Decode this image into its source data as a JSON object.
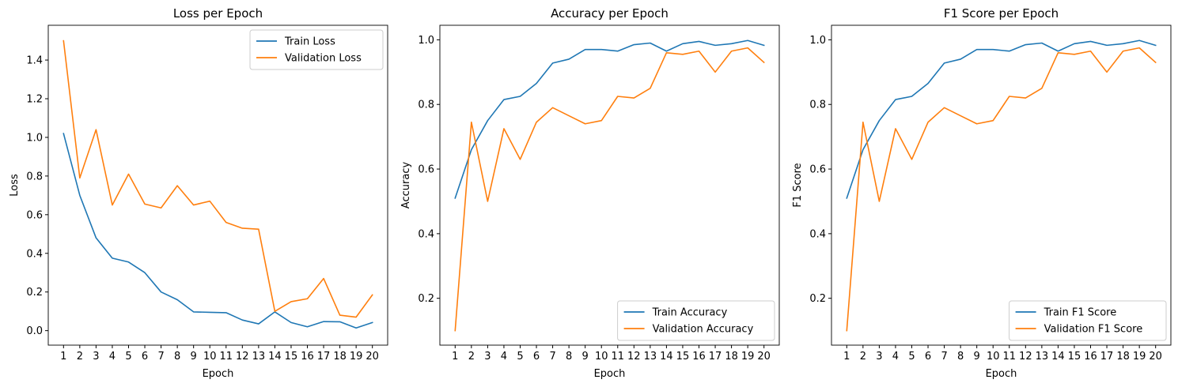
{
  "colors": {
    "train": "#1f77b4",
    "validation": "#ff7f0e",
    "axes": "#000000"
  },
  "chart_data": [
    {
      "type": "line",
      "title": "Loss per Epoch",
      "xlabel": "Epoch",
      "ylabel": "Loss",
      "x": [
        1,
        2,
        3,
        4,
        5,
        6,
        7,
        8,
        9,
        10,
        11,
        12,
        13,
        14,
        15,
        16,
        17,
        18,
        19,
        20
      ],
      "ylim": [
        -0.075,
        1.58
      ],
      "yticks": [
        0.0,
        0.2,
        0.4,
        0.6,
        0.8,
        1.0,
        1.2,
        1.4
      ],
      "ytick_labels": [
        "0.0",
        "0.2",
        "0.4",
        "0.6",
        "0.8",
        "1.0",
        "1.2",
        "1.4"
      ],
      "legend_position": "top-right",
      "series": [
        {
          "name": "Train Loss",
          "color": "#1f77b4",
          "values": [
            1.02,
            0.7,
            0.48,
            0.375,
            0.355,
            0.3,
            0.2,
            0.16,
            0.097,
            0.095,
            0.093,
            0.055,
            0.035,
            0.097,
            0.042,
            0.02,
            0.047,
            0.046,
            0.014,
            0.042
          ]
        },
        {
          "name": "Validation Loss",
          "color": "#ff7f0e",
          "values": [
            1.5,
            0.79,
            1.04,
            0.65,
            0.81,
            0.655,
            0.635,
            0.75,
            0.65,
            0.67,
            0.56,
            0.53,
            0.525,
            0.1,
            0.15,
            0.165,
            0.27,
            0.08,
            0.07,
            0.185
          ]
        }
      ]
    },
    {
      "type": "line",
      "title": "Accuracy per Epoch",
      "xlabel": "Epoch",
      "ylabel": "Accuracy",
      "x": [
        1,
        2,
        3,
        4,
        5,
        6,
        7,
        8,
        9,
        10,
        11,
        12,
        13,
        14,
        15,
        16,
        17,
        18,
        19,
        20
      ],
      "ylim": [
        0.055,
        1.045
      ],
      "yticks": [
        0.2,
        0.4,
        0.6,
        0.8,
        1.0
      ],
      "ytick_labels": [
        "0.2",
        "0.4",
        "0.6",
        "0.8",
        "1.0"
      ],
      "legend_position": "bottom-right",
      "series": [
        {
          "name": "Train Accuracy",
          "color": "#1f77b4",
          "values": [
            0.51,
            0.66,
            0.75,
            0.815,
            0.825,
            0.865,
            0.928,
            0.94,
            0.97,
            0.97,
            0.965,
            0.985,
            0.99,
            0.965,
            0.988,
            0.995,
            0.983,
            0.988,
            0.998,
            0.983
          ]
        },
        {
          "name": "Validation Accuracy",
          "color": "#ff7f0e",
          "values": [
            0.1,
            0.745,
            0.5,
            0.725,
            0.63,
            0.745,
            0.79,
            0.765,
            0.74,
            0.75,
            0.825,
            0.82,
            0.85,
            0.96,
            0.955,
            0.965,
            0.9,
            0.965,
            0.975,
            0.93
          ]
        }
      ]
    },
    {
      "type": "line",
      "title": "F1 Score per Epoch",
      "xlabel": "Epoch",
      "ylabel": "F1 Score",
      "x": [
        1,
        2,
        3,
        4,
        5,
        6,
        7,
        8,
        9,
        10,
        11,
        12,
        13,
        14,
        15,
        16,
        17,
        18,
        19,
        20
      ],
      "ylim": [
        0.055,
        1.045
      ],
      "yticks": [
        0.2,
        0.4,
        0.6,
        0.8,
        1.0
      ],
      "ytick_labels": [
        "0.2",
        "0.4",
        "0.6",
        "0.8",
        "1.0"
      ],
      "legend_position": "bottom-right",
      "series": [
        {
          "name": "Train F1 Score",
          "color": "#1f77b4",
          "values": [
            0.51,
            0.66,
            0.75,
            0.815,
            0.825,
            0.865,
            0.928,
            0.94,
            0.97,
            0.97,
            0.965,
            0.985,
            0.99,
            0.965,
            0.988,
            0.995,
            0.983,
            0.988,
            0.998,
            0.983
          ]
        },
        {
          "name": "Validation F1 Score",
          "color": "#ff7f0e",
          "values": [
            0.1,
            0.745,
            0.5,
            0.725,
            0.63,
            0.745,
            0.79,
            0.765,
            0.74,
            0.75,
            0.825,
            0.82,
            0.85,
            0.96,
            0.955,
            0.965,
            0.9,
            0.965,
            0.975,
            0.93
          ]
        }
      ]
    }
  ]
}
